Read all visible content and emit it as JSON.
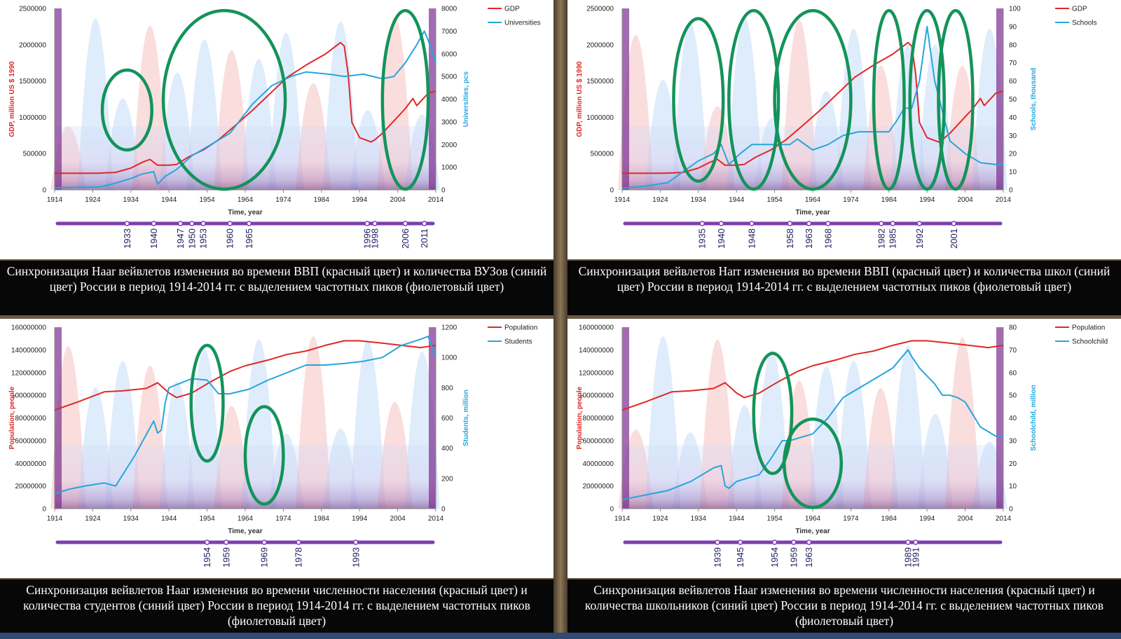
{
  "colors": {
    "red_series": "#e02828",
    "blue_series": "#26a6dc",
    "peak_bar": "#7d3fb0",
    "ellipse": "#14935a",
    "caption_bg": "#070707"
  },
  "chart_data": [
    {
      "type": "line",
      "x_ticks": [
        "1914",
        "1924",
        "1934",
        "1944",
        "1954",
        "1964",
        "1974",
        "1984",
        "1994",
        "2004",
        "2014"
      ],
      "xlabel": "Time, year",
      "ylabel": "GDP, million US $ 1990",
      "y2label": "Universities, pcs",
      "ylim": [
        0,
        2500000
      ],
      "y2lim": [
        0,
        8000
      ],
      "y_ticks": [
        "0",
        "500000",
        "1000000",
        "1500000",
        "2000000",
        "2500000"
      ],
      "y2_ticks": [
        "0",
        "1000",
        "2000",
        "3000",
        "4000",
        "5000",
        "6000",
        "7000",
        "8000"
      ],
      "legend": "top-right",
      "series": [
        {
          "name": "GDP",
          "axis": "left",
          "x": [
            1914,
            1918,
            1925,
            1930,
            1932,
            1934,
            1937,
            1939,
            1941,
            1944,
            1946,
            1949,
            1953,
            1957,
            1961,
            1966,
            1970,
            1975,
            1980,
            1985,
            1989,
            1990,
            1991,
            1992,
            1994,
            1997,
            1998,
            2000,
            2003,
            2006,
            2008,
            2009,
            2012,
            2014
          ],
          "y": [
            230000,
            230000,
            230000,
            240000,
            270000,
            300000,
            380000,
            420000,
            340000,
            340000,
            350000,
            450000,
            550000,
            690000,
            870000,
            1100000,
            1300000,
            1550000,
            1720000,
            1870000,
            2030000,
            1980000,
            1600000,
            930000,
            720000,
            660000,
            690000,
            780000,
            950000,
            1120000,
            1260000,
            1160000,
            1330000,
            1360000
          ]
        },
        {
          "name": "Universities",
          "axis": "right",
          "x": [
            1914,
            1920,
            1926,
            1930,
            1934,
            1937,
            1940,
            1941,
            1943,
            1946,
            1950,
            1955,
            1960,
            1966,
            1971,
            1976,
            1980,
            1986,
            1990,
            1995,
            2000,
            2003,
            2006,
            2009,
            2011,
            2012,
            2014
          ],
          "y": [
            90,
            110,
            130,
            300,
            500,
            700,
            800,
            250,
            600,
            900,
            1500,
            2000,
            2500,
            3800,
            4600,
            5000,
            5200,
            5100,
            5000,
            5100,
            4900,
            5000,
            5600,
            6400,
            7000,
            6600,
            5600
          ]
        }
      ],
      "peak_years": [
        "1933",
        "1940",
        "1947",
        "1950",
        "1953",
        "1960",
        "1965",
        "1996",
        "1998",
        "2006",
        "2011"
      ],
      "highlight_ellipses": [
        {
          "center_year": 1933,
          "year_halfwidth": 6.5,
          "center_value": 1100000,
          "value_halfheight": 550000
        },
        {
          "center_year": 1958.5,
          "year_halfwidth": 16,
          "center_value": 1240000,
          "value_halfheight": 1230000
        },
        {
          "center_year": 2006,
          "year_halfwidth": 6,
          "center_value": 1240000,
          "value_halfheight": 1230000
        }
      ]
    },
    {
      "type": "line",
      "x_ticks": [
        "1914",
        "1924",
        "1934",
        "1944",
        "1954",
        "1964",
        "1974",
        "1984",
        "1994",
        "2004",
        "2014"
      ],
      "xlabel": "Time, year",
      "ylabel": "GDP, million US $ 1990",
      "y2label": "Schools, thousand",
      "ylim": [
        0,
        2500000
      ],
      "y2lim": [
        0,
        100
      ],
      "y_ticks": [
        "0",
        "500000",
        "1000000",
        "1500000",
        "2000000",
        "2500000"
      ],
      "y2_ticks": [
        "0",
        "10",
        "20",
        "30",
        "40",
        "50",
        "60",
        "70",
        "80",
        "90",
        "100"
      ],
      "legend": "top-right",
      "series": [
        {
          "name": "GDP",
          "axis": "left",
          "x": [
            1914,
            1918,
            1925,
            1930,
            1932,
            1934,
            1937,
            1939,
            1941,
            1944,
            1946,
            1949,
            1953,
            1957,
            1961,
            1966,
            1970,
            1975,
            1980,
            1985,
            1989,
            1990,
            1991,
            1992,
            1994,
            1997,
            1998,
            2000,
            2003,
            2006,
            2008,
            2009,
            2012,
            2014
          ],
          "y": [
            230000,
            230000,
            230000,
            240000,
            270000,
            300000,
            380000,
            420000,
            340000,
            340000,
            350000,
            450000,
            550000,
            690000,
            870000,
            1100000,
            1300000,
            1550000,
            1720000,
            1870000,
            2030000,
            1980000,
            1600000,
            930000,
            720000,
            660000,
            690000,
            780000,
            950000,
            1120000,
            1260000,
            1160000,
            1330000,
            1360000
          ]
        },
        {
          "name": "Schools",
          "axis": "right",
          "x": [
            1914,
            1920,
            1926,
            1930,
            1934,
            1938,
            1940,
            1942,
            1945,
            1948,
            1952,
            1958,
            1960,
            1964,
            1968,
            1972,
            1976,
            1980,
            1984,
            1986,
            1988,
            1990,
            1992,
            1994,
            1996,
            2000,
            2004,
            2008,
            2012,
            2014
          ],
          "y": [
            1,
            2,
            4,
            10,
            16,
            20,
            25,
            14,
            20,
            25,
            25,
            25,
            28,
            22,
            25,
            30,
            32,
            32,
            32,
            38,
            45,
            45,
            60,
            90,
            60,
            27,
            20,
            15,
            14,
            14
          ]
        }
      ],
      "peak_years": [
        "1935",
        "1940",
        "1948",
        "1958",
        "1963",
        "1968",
        "1982",
        "1985",
        "1992",
        "2001"
      ],
      "highlight_ellipses": [
        {
          "center_year": 1934,
          "year_halfwidth": 6.5,
          "center_value": 1240000,
          "value_halfheight": 1120000
        },
        {
          "center_year": 1948.5,
          "year_halfwidth": 6.5,
          "center_value": 1240000,
          "value_halfheight": 1230000
        },
        {
          "center_year": 1964,
          "year_halfwidth": 10,
          "center_value": 1240000,
          "value_halfheight": 1230000
        },
        {
          "center_year": 1984,
          "year_halfwidth": 4,
          "center_value": 1240000,
          "value_halfheight": 1230000
        },
        {
          "center_year": 1994,
          "year_halfwidth": 4.5,
          "center_value": 1240000,
          "value_halfheight": 1230000
        },
        {
          "center_year": 2001.5,
          "year_halfwidth": 4.5,
          "center_value": 1240000,
          "value_halfheight": 1230000
        }
      ]
    },
    {
      "type": "line",
      "x_ticks": [
        "1914",
        "1924",
        "1934",
        "1944",
        "1954",
        "1964",
        "1974",
        "1984",
        "1994",
        "2004",
        "2014"
      ],
      "xlabel": "Time, year",
      "ylabel": "Population, people",
      "y2label": "Students, million",
      "ylim": [
        0,
        160000000
      ],
      "y2lim": [
        0,
        1200
      ],
      "y_ticks": [
        "0",
        "20000000",
        "40000000",
        "60000000",
        "80000000",
        "100000000",
        "120000000",
        "140000000",
        "160000000"
      ],
      "y2_ticks": [
        "0",
        "200",
        "400",
        "600",
        "800",
        "1000",
        "1200"
      ],
      "legend": "top-right",
      "series": [
        {
          "name": "Population",
          "axis": "left",
          "x": [
            1914,
            1920,
            1927,
            1932,
            1938,
            1941,
            1944,
            1946,
            1950,
            1955,
            1960,
            1964,
            1970,
            1975,
            1980,
            1985,
            1990,
            1994,
            2000,
            2005,
            2010,
            2014
          ],
          "y": [
            87000000,
            94000000,
            103000000,
            104000000,
            106000000,
            111000000,
            102000000,
            98000000,
            102000000,
            112000000,
            121000000,
            126000000,
            131000000,
            136000000,
            139000000,
            144000000,
            148000000,
            148000000,
            146000000,
            144000000,
            142000000,
            144000000
          ]
        },
        {
          "name": "Students",
          "axis": "right",
          "x": [
            1914,
            1918,
            1922,
            1927,
            1930,
            1935,
            1940,
            1941,
            1942,
            1943,
            1944,
            1946,
            1950,
            1954,
            1957,
            1960,
            1965,
            1970,
            1975,
            1980,
            1985,
            1990,
            1995,
            2000,
            2005,
            2010,
            2012,
            2014
          ],
          "y": [
            100,
            130,
            150,
            170,
            150,
            350,
            580,
            500,
            520,
            700,
            800,
            820,
            860,
            850,
            760,
            760,
            790,
            850,
            900,
            950,
            950,
            960,
            975,
            1000,
            1080,
            1120,
            1140,
            1000
          ]
        }
      ],
      "peak_years": [
        "1954",
        "1959",
        "1969",
        "1978",
        "1993"
      ],
      "highlight_ellipses": [
        {
          "center_year": 1954,
          "year_halfwidth": 4.2,
          "center_value": 93000000,
          "value_halfheight": 51000000
        },
        {
          "center_year": 1969,
          "year_halfwidth": 5,
          "center_value": 47000000,
          "value_halfheight": 43000000
        }
      ]
    },
    {
      "type": "line",
      "x_ticks": [
        "1914",
        "1924",
        "1934",
        "1944",
        "1954",
        "1964",
        "1974",
        "1984",
        "1994",
        "2004",
        "2014"
      ],
      "xlabel": "Time, year",
      "ylabel": "Population, people",
      "y2label": "Schoolchild, million",
      "ylim": [
        0,
        160000000
      ],
      "y2lim": [
        0,
        80
      ],
      "y_ticks": [
        "0",
        "20000000",
        "40000000",
        "60000000",
        "80000000",
        "100000000",
        "120000000",
        "140000000",
        "160000000"
      ],
      "y2_ticks": [
        "0",
        "10",
        "20",
        "30",
        "40",
        "50",
        "60",
        "70",
        "80"
      ],
      "legend": "top-right",
      "series": [
        {
          "name": "Population",
          "axis": "left",
          "x": [
            1914,
            1920,
            1927,
            1932,
            1938,
            1941,
            1944,
            1946,
            1950,
            1955,
            1960,
            1964,
            1970,
            1975,
            1980,
            1985,
            1990,
            1994,
            2000,
            2005,
            2010,
            2014
          ],
          "y": [
            87000000,
            94000000,
            103000000,
            104000000,
            106000000,
            111000000,
            102000000,
            98000000,
            102000000,
            112000000,
            121000000,
            126000000,
            131000000,
            136000000,
            139000000,
            144000000,
            148000000,
            148000000,
            146000000,
            144000000,
            142000000,
            144000000
          ]
        },
        {
          "name": "Schoolchild",
          "axis": "right",
          "x": [
            1914,
            1920,
            1926,
            1932,
            1938,
            1940,
            1941,
            1942,
            1944,
            1946,
            1950,
            1953,
            1956,
            1958,
            1962,
            1964,
            1968,
            1972,
            1976,
            1980,
            1985,
            1987,
            1989,
            1990,
            1992,
            1996,
            1998,
            2000,
            2002,
            2004,
            2008,
            2012,
            2014
          ],
          "y": [
            4,
            6,
            8,
            12,
            18,
            19,
            10,
            9,
            12,
            13,
            15,
            22,
            30,
            30,
            32,
            33,
            40,
            49,
            53,
            57,
            62,
            66,
            70,
            67,
            62,
            55,
            50,
            50,
            49,
            47,
            36,
            32,
            32
          ]
        }
      ],
      "peak_years": [
        "1939",
        "1945",
        "1954",
        "1959",
        "1963",
        "1989",
        "1991"
      ],
      "highlight_ellipses": [
        {
          "center_year": 1953.5,
          "year_halfwidth": 5,
          "center_value": 84000000,
          "value_halfheight": 53000000
        },
        {
          "center_year": 1964,
          "year_halfwidth": 7.5,
          "center_value": 40000000,
          "value_halfheight": 39000000
        }
      ]
    }
  ],
  "captions": [
    "Синхронизация Haar вейвлетов изменения во времени ВВП (красный цвет) и количества ВУЗов (синий цвет) России в период 1914-2014 гг. с выделением частотных пиков (фиолетовый цвет)",
    "Синхронизация вейвлетов Harr изменения во времени ВВП (красный цвет) и количества школ (синий цвет) России в период 1914-2014 гг. с выделением частотных пиков (фиолетовый цвет)",
    "Синхронизация вейвлетов Haar изменения во времени численности населения (красный цвет) и количества студентов (синий цвет) России в период 1914-2014 гг. с выделением частотных пиков (фиолетовый цвет)",
    "Синхронизация вейвлетов Haar изменения во времени численности населения (красный цвет) и количества школьников (синий цвет) России в период 1914-2014 гг. с выделением частотных пиков (фиолетовый цвет)"
  ]
}
